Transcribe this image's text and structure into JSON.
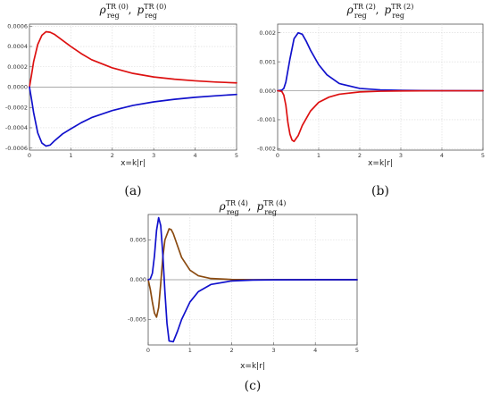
{
  "chart_data": [
    {
      "type": "line",
      "panel_label": "(a)",
      "title": {
        "rho": "ρ",
        "p": "p",
        "sub": "reg",
        "sup": "TR (0)",
        "sep": ","
      },
      "xlabel": "x=k|r|",
      "xlim": [
        0,
        5
      ],
      "ylim": [
        -0.00062,
        0.00062
      ],
      "xticks": [
        "0",
        "1",
        "2",
        "3",
        "4",
        "5"
      ],
      "xtick_values": [
        0,
        1,
        2,
        3,
        4,
        5
      ],
      "yticks": [
        "-0.0006",
        "-0.0004",
        "-0.0002",
        "0.0000",
        "0.0002",
        "0.0004",
        "0.0006"
      ],
      "ytick_values": [
        -0.0006,
        -0.0004,
        -0.0002,
        0,
        0.0002,
        0.0004,
        0.0006
      ],
      "grid": true,
      "series": [
        {
          "color": "#dd1111",
          "x": [
            0,
            0.05,
            0.1,
            0.2,
            0.3,
            0.4,
            0.5,
            0.6,
            0.8,
            1.0,
            1.25,
            1.5,
            2.0,
            2.5,
            3.0,
            3.5,
            4.0,
            4.5,
            5.0
          ],
          "y": [
            0,
            0.00012,
            0.00025,
            0.00042,
            0.00051,
            0.000545,
            0.00054,
            0.00052,
            0.00046,
            0.0004,
            0.00033,
            0.00027,
            0.00019,
            0.000135,
            0.0001,
            7.8e-05,
            6.2e-05,
            5e-05,
            4.2e-05
          ]
        },
        {
          "color": "#1111cc",
          "x": [
            0,
            0.05,
            0.1,
            0.2,
            0.3,
            0.4,
            0.5,
            0.6,
            0.8,
            1.0,
            1.25,
            1.5,
            2.0,
            2.5,
            3.0,
            3.5,
            4.0,
            4.5,
            5.0
          ],
          "y": [
            0,
            -0.00012,
            -0.00025,
            -0.00045,
            -0.00055,
            -0.00058,
            -0.00057,
            -0.00053,
            -0.00046,
            -0.00041,
            -0.00035,
            -0.0003,
            -0.00023,
            -0.00018,
            -0.000145,
            -0.00012,
            -0.0001,
            -8.5e-05,
            -7.2e-05
          ]
        }
      ]
    },
    {
      "type": "line",
      "panel_label": "(b)",
      "title": {
        "rho": "ρ",
        "p": "p",
        "sub": "reg",
        "sup": "TR (2)",
        "sep": ","
      },
      "xlabel": "x=k|r|",
      "xlim": [
        0,
        5
      ],
      "ylim": [
        -0.00205,
        0.0023
      ],
      "xticks": [
        "0",
        "1",
        "2",
        "3",
        "4",
        "5"
      ],
      "xtick_values": [
        0,
        1,
        2,
        3,
        4,
        5
      ],
      "yticks": [
        "-0.002",
        "-0.001",
        "0.000",
        "0.001",
        "0.002"
      ],
      "ytick_values": [
        -0.002,
        -0.001,
        0,
        0.001,
        0.002
      ],
      "grid": true,
      "series": [
        {
          "color": "#1111cc",
          "x": [
            0,
            0.1,
            0.15,
            0.2,
            0.3,
            0.4,
            0.5,
            0.6,
            0.7,
            0.8,
            1.0,
            1.2,
            1.5,
            2.0,
            2.5,
            3.0,
            3.5,
            4.0,
            5.0
          ],
          "y": [
            0,
            2e-05,
            8e-05,
            0.0003,
            0.0011,
            0.0018,
            0.002,
            0.00195,
            0.0017,
            0.0014,
            0.0009,
            0.00055,
            0.00025,
            8e-05,
            3e-05,
            1.2e-05,
            5e-06,
            2e-06,
            0
          ]
        },
        {
          "color": "#dd1111",
          "x": [
            0,
            0.1,
            0.15,
            0.2,
            0.25,
            0.3,
            0.35,
            0.4,
            0.5,
            0.6,
            0.8,
            1.0,
            1.25,
            1.5,
            2.0,
            2.5,
            3.0,
            4.0,
            5.0
          ],
          "y": [
            0,
            -2e-05,
            -0.00015,
            -0.0005,
            -0.0011,
            -0.0015,
            -0.0017,
            -0.00175,
            -0.00155,
            -0.0012,
            -0.0007,
            -0.0004,
            -0.00022,
            -0.00012,
            -4e-05,
            -1.5e-05,
            -6e-06,
            -1e-06,
            0
          ]
        }
      ]
    },
    {
      "type": "line",
      "panel_label": "(c)",
      "title": {
        "rho": "ρ",
        "p": "p",
        "sub": "reg",
        "sup": "TR (4)",
        "sep": ","
      },
      "xlabel": "x=k|r|",
      "xlim": [
        0,
        5
      ],
      "ylim": [
        -0.0082,
        0.0082
      ],
      "xticks": [
        "0",
        "1",
        "2",
        "3",
        "4",
        "5"
      ],
      "xtick_values": [
        0,
        1,
        2,
        3,
        4,
        5
      ],
      "yticks": [
        "-0.005",
        "0.000",
        "0.005"
      ],
      "ytick_values": [
        -0.005,
        0,
        0.005
      ],
      "grid": true,
      "series": [
        {
          "color": "#8a4a10",
          "x": [
            0,
            0.05,
            0.1,
            0.15,
            0.2,
            0.25,
            0.3,
            0.35,
            0.4,
            0.5,
            0.55,
            0.6,
            0.7,
            0.8,
            1.0,
            1.2,
            1.5,
            2.0,
            2.5,
            3.0,
            4.0,
            5.0
          ],
          "y": [
            0,
            -0.0012,
            -0.0028,
            -0.0042,
            -0.0047,
            -0.0035,
            -0.0005,
            0.0028,
            0.005,
            0.0064,
            0.0063,
            0.0058,
            0.0043,
            0.0028,
            0.0012,
            0.0005,
            0.00015,
            3e-05,
            0,
            0,
            0,
            0
          ]
        },
        {
          "color": "#1111cc",
          "x": [
            0,
            0.05,
            0.1,
            0.15,
            0.2,
            0.25,
            0.3,
            0.35,
            0.4,
            0.45,
            0.5,
            0.6,
            0.7,
            0.8,
            1.0,
            1.2,
            1.5,
            2.0,
            2.5,
            3.0,
            4.0,
            5.0
          ],
          "y": [
            0,
            0.0001,
            0.0008,
            0.003,
            0.0062,
            0.0078,
            0.0068,
            0.0032,
            -0.0015,
            -0.0055,
            -0.0077,
            -0.0078,
            -0.0065,
            -0.005,
            -0.0028,
            -0.0015,
            -0.0006,
            -0.00015,
            -4e-05,
            -1e-05,
            0,
            0
          ]
        }
      ]
    }
  ]
}
